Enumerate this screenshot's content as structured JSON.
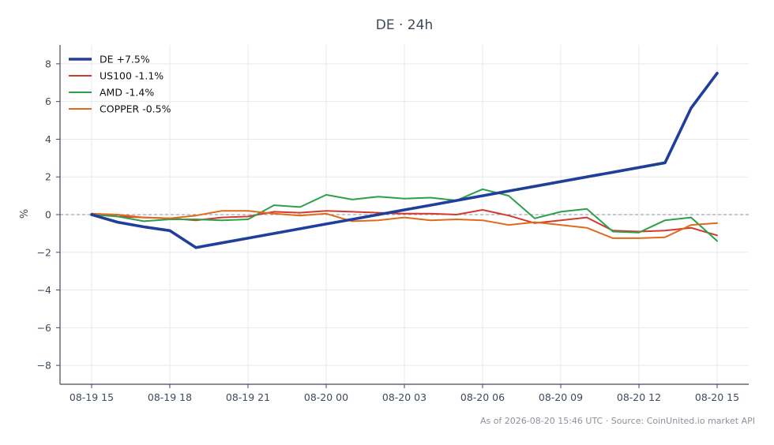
{
  "chart_data": {
    "type": "line",
    "title": "DE · 24h",
    "ylabel": "%",
    "xlabel": "",
    "ylim": [
      -9,
      9
    ],
    "yticks": [
      -8,
      -6,
      -4,
      -2,
      0,
      2,
      4,
      6,
      8
    ],
    "ytick_labels": [
      "−8",
      "−6",
      "−4",
      "−2",
      "0",
      "2",
      "4",
      "6",
      "8"
    ],
    "xtick_labels": [
      "08-19 15",
      "08-19 18",
      "08-19 21",
      "08-20 00",
      "08-20 03",
      "08-20 06",
      "08-20 09",
      "08-20 12",
      "08-20 15"
    ],
    "x": [
      "08-19 15",
      "08-19 16",
      "08-19 17",
      "08-19 18",
      "08-19 19",
      "08-19 20",
      "08-19 21",
      "08-19 22",
      "08-19 23",
      "08-20 00",
      "08-20 01",
      "08-20 02",
      "08-20 03",
      "08-20 04",
      "08-20 05",
      "08-20 06",
      "08-20 07",
      "08-20 08",
      "08-20 09",
      "08-20 10",
      "08-20 11",
      "08-20 12",
      "08-20 13",
      "08-20 14",
      "08-20 15"
    ],
    "grid": true,
    "zero_line": true,
    "legend_position": "top-left",
    "series": [
      {
        "name": "DE +7.5%",
        "color": "#1f3f9a",
        "emphasis": true,
        "values": [
          0.0,
          -0.4,
          -0.65,
          -0.85,
          -1.75,
          -1.5,
          -1.25,
          -1.0,
          -0.75,
          -0.5,
          -0.25,
          0.0,
          0.25,
          0.5,
          0.75,
          1.0,
          1.25,
          1.5,
          1.75,
          2.0,
          2.25,
          2.5,
          2.75,
          5.65,
          7.5
        ]
      },
      {
        "name": "US100 -1.1%",
        "color": "#d33a2c",
        "values": [
          0.05,
          -0.1,
          -0.15,
          -0.2,
          -0.3,
          -0.15,
          -0.1,
          0.15,
          0.1,
          0.2,
          0.15,
          0.1,
          0.05,
          0.05,
          0.0,
          0.25,
          -0.05,
          -0.45,
          -0.3,
          -0.15,
          -0.85,
          -0.9,
          -0.85,
          -0.7,
          -1.1
        ]
      },
      {
        "name": "AMD -1.4%",
        "color": "#2ca04b",
        "values": [
          0.0,
          -0.1,
          -0.35,
          -0.25,
          -0.25,
          -0.3,
          -0.25,
          0.5,
          0.4,
          1.05,
          0.8,
          0.95,
          0.85,
          0.9,
          0.75,
          1.35,
          1.0,
          -0.2,
          0.15,
          0.3,
          -0.9,
          -0.95,
          -0.3,
          -0.15,
          -1.4
        ]
      },
      {
        "name": "COPPER -0.5%",
        "color": "#e06a1b",
        "values": [
          0.05,
          0.0,
          -0.15,
          -0.2,
          -0.05,
          0.2,
          0.2,
          0.05,
          -0.05,
          0.05,
          -0.35,
          -0.3,
          -0.15,
          -0.3,
          -0.25,
          -0.3,
          -0.55,
          -0.4,
          -0.55,
          -0.7,
          -1.25,
          -1.25,
          -1.2,
          -0.55,
          -0.45
        ]
      }
    ],
    "footer": "As of 2026-08-20 15:46 UTC · Source: CoinUnited.io market API",
    "colors": {
      "axis": "#3f4a5a",
      "grid": "#e6e8eb",
      "zero_line": "#8a95a8"
    }
  }
}
